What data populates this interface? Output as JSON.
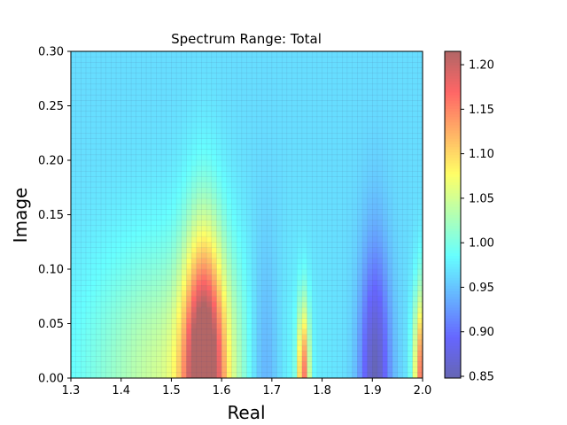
{
  "chart_data": {
    "type": "heatmap",
    "title": "Spectrum Range: Total",
    "xlabel": "Real",
    "ylabel": "Image",
    "xlim": [
      1.3,
      2.0
    ],
    "ylim": [
      0.0,
      0.3
    ],
    "x_ticks": [
      1.3,
      1.4,
      1.5,
      1.6,
      1.7,
      1.8,
      1.9,
      2.0
    ],
    "x_tick_labels": [
      "1.3",
      "1.4",
      "1.5",
      "1.6",
      "1.7",
      "1.8",
      "1.9",
      "2.0"
    ],
    "y_ticks": [
      0.0,
      0.05,
      0.1,
      0.15,
      0.2,
      0.25,
      0.3
    ],
    "y_tick_labels": [
      "0.00",
      "0.05",
      "0.10",
      "0.15",
      "0.20",
      "0.25",
      "0.30"
    ],
    "colormap": "jet",
    "grid": true,
    "colorbar": {
      "range": [
        0.848,
        1.215
      ],
      "ticks": [
        0.85,
        0.9,
        0.95,
        1.0,
        1.05,
        1.1,
        1.15,
        1.2
      ],
      "tick_labels": [
        "0.85",
        "0.90",
        "0.95",
        "1.00",
        "1.05",
        "1.10",
        "1.15",
        "1.20"
      ]
    },
    "value_field": {
      "baseline": 0.965,
      "features": [
        {
          "kind": "peak",
          "x": 1.565,
          "y": 0.0,
          "amplitude": 0.25,
          "x_width": 0.04
        },
        {
          "kind": "peak",
          "x": 1.763,
          "y": 0.0,
          "amplitude": 0.18,
          "x_width": 0.012
        },
        {
          "kind": "peak",
          "x": 2.0,
          "y": 0.0,
          "amplitude": 0.2,
          "x_width": 0.018
        },
        {
          "kind": "dip",
          "x": 1.685,
          "y": 0.0,
          "amplitude": -0.06,
          "x_width": 0.035
        },
        {
          "kind": "dip",
          "x": 1.905,
          "y": 0.0,
          "amplitude": -0.115,
          "x_width": 0.03
        }
      ]
    }
  }
}
